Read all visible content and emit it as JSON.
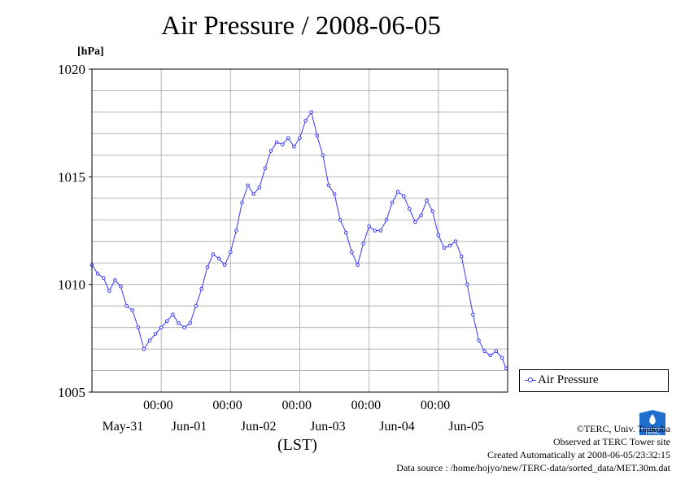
{
  "title": "Air Pressure / 2008-06-05",
  "unit": "[hPa]",
  "x_axis_label": "(LST)",
  "legend_label": "Air Pressure",
  "credits": {
    "org": "©TERC, Univ. Tsukuba",
    "site": "Observed at TERC Tower site",
    "created": "Created Automatically at 2008-06-05/23:32:15",
    "source": "Data source : /home/hojyo/new/TERC-data/sorted_data/MET.30m.dat"
  },
  "colors": {
    "series": "#3535ff",
    "grid": "#b4b4b4",
    "logo": "#1f6fd1"
  },
  "chart_data": {
    "type": "line",
    "title": "Air Pressure / 2008-06-05",
    "ylabel": "[hPa]",
    "xlabel": "(LST)",
    "ylim": [
      1005,
      1020
    ],
    "yticks": [
      1005,
      1010,
      1015,
      1020
    ],
    "xlim": [
      "2008-05-31T00:00",
      "2008-06-06T00:00"
    ],
    "x_time_ticks": [
      "00:00",
      "00:00",
      "00:00",
      "00:00",
      "00:00"
    ],
    "x_day_labels": [
      "May-31",
      "Jun-01",
      "Jun-02",
      "Jun-03",
      "Jun-04",
      "Jun-05"
    ],
    "grid": true,
    "legend_position": "bottom-right",
    "series": [
      {
        "name": "Air Pressure",
        "marker": "open-circle",
        "points": [
          [
            "05-31 00:00",
            1010.9
          ],
          [
            "05-31 02:00",
            1010.5
          ],
          [
            "05-31 04:00",
            1010.3
          ],
          [
            "05-31 06:00",
            1009.7
          ],
          [
            "05-31 08:00",
            1010.2
          ],
          [
            "05-31 10:00",
            1009.9
          ],
          [
            "05-31 12:00",
            1009.0
          ],
          [
            "05-31 14:00",
            1008.8
          ],
          [
            "05-31 16:00",
            1008.0
          ],
          [
            "05-31 18:00",
            1007.0
          ],
          [
            "05-31 20:00",
            1007.4
          ],
          [
            "05-31 22:00",
            1007.7
          ],
          [
            "06-01 00:00",
            1008.0
          ],
          [
            "06-01 02:00",
            1008.3
          ],
          [
            "06-01 04:00",
            1008.6
          ],
          [
            "06-01 06:00",
            1008.2
          ],
          [
            "06-01 08:00",
            1008.0
          ],
          [
            "06-01 10:00",
            1008.2
          ],
          [
            "06-01 12:00",
            1009.0
          ],
          [
            "06-01 14:00",
            1009.8
          ],
          [
            "06-01 16:00",
            1010.8
          ],
          [
            "06-01 18:00",
            1011.4
          ],
          [
            "06-01 20:00",
            1011.2
          ],
          [
            "06-01 22:00",
            1010.9
          ],
          [
            "06-02 00:00",
            1011.5
          ],
          [
            "06-02 02:00",
            1012.5
          ],
          [
            "06-02 04:00",
            1013.8
          ],
          [
            "06-02 06:00",
            1014.6
          ],
          [
            "06-02 08:00",
            1014.2
          ],
          [
            "06-02 10:00",
            1014.5
          ],
          [
            "06-02 12:00",
            1015.4
          ],
          [
            "06-02 14:00",
            1016.2
          ],
          [
            "06-02 16:00",
            1016.6
          ],
          [
            "06-02 18:00",
            1016.5
          ],
          [
            "06-02 20:00",
            1016.8
          ],
          [
            "06-02 22:00",
            1016.4
          ],
          [
            "06-03 00:00",
            1016.8
          ],
          [
            "06-03 02:00",
            1017.6
          ],
          [
            "06-03 04:00",
            1018.0
          ],
          [
            "06-03 06:00",
            1016.9
          ],
          [
            "06-03 08:00",
            1016.0
          ],
          [
            "06-03 10:00",
            1014.6
          ],
          [
            "06-03 12:00",
            1014.2
          ],
          [
            "06-03 14:00",
            1013.0
          ],
          [
            "06-03 16:00",
            1012.4
          ],
          [
            "06-03 18:00",
            1011.5
          ],
          [
            "06-03 20:00",
            1010.9
          ],
          [
            "06-03 22:00",
            1011.9
          ],
          [
            "06-04 00:00",
            1012.7
          ],
          [
            "06-04 02:00",
            1012.5
          ],
          [
            "06-04 04:00",
            1012.5
          ],
          [
            "06-04 06:00",
            1013.0
          ],
          [
            "06-04 08:00",
            1013.8
          ],
          [
            "06-04 10:00",
            1014.3
          ],
          [
            "06-04 12:00",
            1014.1
          ],
          [
            "06-04 14:00",
            1013.5
          ],
          [
            "06-04 16:00",
            1012.9
          ],
          [
            "06-04 18:00",
            1013.2
          ],
          [
            "06-04 20:00",
            1013.9
          ],
          [
            "06-04 22:00",
            1013.4
          ],
          [
            "06-05 00:00",
            1012.3
          ],
          [
            "06-05 02:00",
            1011.7
          ],
          [
            "06-05 04:00",
            1011.8
          ],
          [
            "06-05 06:00",
            1012.0
          ],
          [
            "06-05 08:00",
            1011.3
          ],
          [
            "06-05 10:00",
            1010.0
          ],
          [
            "06-05 12:00",
            1008.6
          ],
          [
            "06-05 14:00",
            1007.4
          ],
          [
            "06-05 16:00",
            1006.9
          ],
          [
            "06-05 18:00",
            1006.7
          ],
          [
            "06-05 20:00",
            1006.9
          ],
          [
            "06-05 22:00",
            1006.6
          ],
          [
            "06-05 23:30",
            1006.1
          ]
        ]
      }
    ]
  }
}
